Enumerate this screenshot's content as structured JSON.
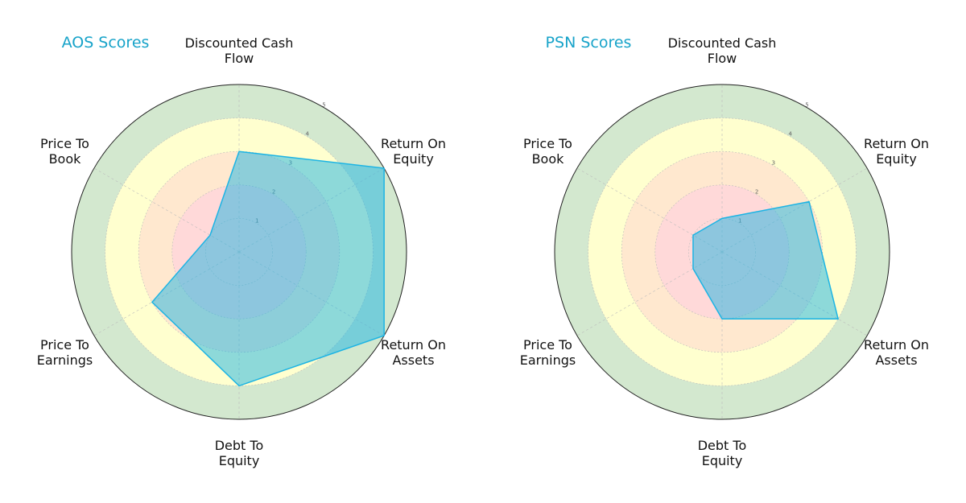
{
  "chart_data": [
    {
      "type": "radar",
      "title": "AOS Scores",
      "categories": [
        "Discounted Cash\nFlow",
        "Return On\nEquity",
        "Return On\nAssets",
        "Debt To\nEquity",
        "Price To\nEarnings",
        "Price To\nBook"
      ],
      "values": [
        3,
        5,
        5,
        4,
        3,
        1
      ],
      "color": "#1cb4e4",
      "rlim": [
        0,
        5
      ],
      "rticks": [
        1,
        2,
        3,
        4,
        5
      ],
      "grid": true,
      "band_edges": [
        5,
        4,
        3,
        2
      ],
      "band_colors": [
        "#d3e8cf",
        "#ffffcf",
        "#ffe8cf",
        "#ffd9d9"
      ]
    },
    {
      "type": "radar",
      "title": "PSN Scores",
      "categories": [
        "Discounted Cash\nFlow",
        "Return On\nEquity",
        "Return On\nAssets",
        "Debt To\nEquity",
        "Price To\nEarnings",
        "Price To\nBook"
      ],
      "values": [
        1,
        3,
        4,
        2,
        1,
        1
      ],
      "color": "#1cb4e4",
      "rlim": [
        0,
        5
      ],
      "rticks": [
        1,
        2,
        3,
        4,
        5
      ],
      "grid": true,
      "band_edges": [
        5,
        4,
        3,
        2
      ],
      "band_colors": [
        "#d3e8cf",
        "#ffffcf",
        "#ffe8cf",
        "#ffd9d9"
      ]
    }
  ]
}
